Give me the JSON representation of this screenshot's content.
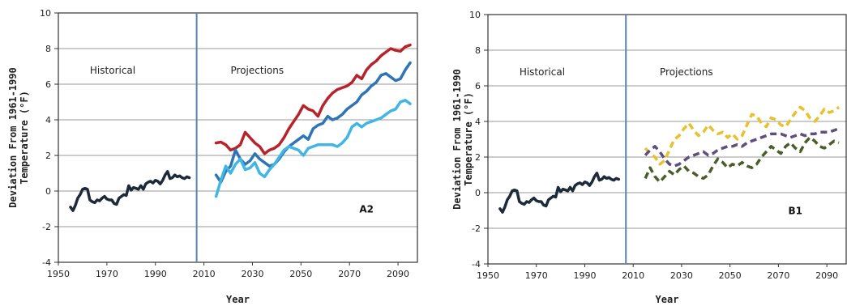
{
  "charts": [
    {
      "chart_data": {
        "type": "line",
        "panel_label": "A2",
        "xlabel": "Year",
        "ylabel_line1": "Deviation From 1961-1990",
        "ylabel_line2": "Temperature (°F)",
        "xlim": [
          1950,
          2098
        ],
        "ylim": [
          -4,
          10
        ],
        "xticks": [
          1950,
          1970,
          1990,
          2010,
          2030,
          2050,
          2070,
          2090
        ],
        "yticks": [
          -4,
          -2,
          0,
          2,
          4,
          6,
          8,
          10
        ],
        "grid": true,
        "divider_year": 2007,
        "annotations": {
          "historical": "Historical",
          "projections": "Projections"
        },
        "series": [
          {
            "key": "historical",
            "color": "#1d2a3a",
            "dashed": false,
            "x": [
              1955,
              1956,
              1957,
              1958,
              1959,
              1960,
              1961,
              1962,
              1963,
              1964,
              1965,
              1966,
              1967,
              1968,
              1969,
              1970,
              1971,
              1972,
              1973,
              1974,
              1975,
              1976,
              1977,
              1978,
              1979,
              1980,
              1981,
              1982,
              1983,
              1984,
              1985,
              1986,
              1987,
              1988,
              1989,
              1990,
              1991,
              1992,
              1993,
              1994,
              1995,
              1996,
              1997,
              1998,
              1999,
              2000,
              2001,
              2002,
              2003,
              2004
            ],
            "y": [
              -0.9,
              -1.1,
              -0.8,
              -0.4,
              -0.2,
              0.1,
              0.15,
              0.1,
              -0.5,
              -0.6,
              -0.65,
              -0.5,
              -0.55,
              -0.4,
              -0.3,
              -0.45,
              -0.5,
              -0.5,
              -0.7,
              -0.75,
              -0.4,
              -0.3,
              -0.2,
              -0.25,
              0.3,
              0.05,
              0.2,
              0.15,
              0.1,
              0.3,
              0.1,
              0.4,
              0.5,
              0.55,
              0.45,
              0.6,
              0.55,
              0.4,
              0.6,
              0.9,
              1.1,
              0.7,
              0.75,
              0.9,
              0.8,
              0.85,
              0.75,
              0.7,
              0.8,
              0.75
            ]
          },
          {
            "key": "high",
            "color": "#b8222a",
            "dashed": false,
            "x": [
              2015,
              2017,
              2019,
              2021,
              2023,
              2025,
              2027,
              2029,
              2031,
              2033,
              2035,
              2037,
              2039,
              2041,
              2043,
              2045,
              2047,
              2049,
              2051,
              2053,
              2055,
              2057,
              2059,
              2061,
              2063,
              2065,
              2067,
              2069,
              2071,
              2073,
              2075,
              2077,
              2079,
              2081,
              2083,
              2085,
              2087,
              2089,
              2091,
              2093,
              2095
            ],
            "y": [
              2.7,
              2.75,
              2.6,
              2.3,
              2.4,
              2.6,
              3.3,
              3.0,
              2.7,
              2.5,
              2.1,
              2.3,
              2.4,
              2.6,
              3.0,
              3.5,
              3.9,
              4.3,
              4.8,
              4.6,
              4.5,
              4.2,
              4.8,
              5.2,
              5.5,
              5.7,
              5.8,
              5.9,
              6.1,
              6.5,
              6.3,
              6.8,
              7.1,
              7.3,
              7.6,
              7.8,
              8.0,
              7.9,
              7.85,
              8.1,
              8.2
            ]
          },
          {
            "key": "mid",
            "color": "#2f75b5",
            "dashed": false,
            "x": [
              2015,
              2017,
              2019,
              2021,
              2023,
              2025,
              2027,
              2029,
              2031,
              2033,
              2035,
              2037,
              2039,
              2041,
              2043,
              2045,
              2047,
              2049,
              2051,
              2053,
              2055,
              2057,
              2059,
              2061,
              2063,
              2065,
              2067,
              2069,
              2071,
              2073,
              2075,
              2077,
              2079,
              2081,
              2083,
              2085,
              2087,
              2089,
              2091,
              2093,
              2095
            ],
            "y": [
              0.9,
              0.5,
              1.1,
              1.4,
              2.3,
              1.8,
              1.5,
              1.7,
              2.1,
              1.8,
              1.6,
              1.4,
              1.5,
              1.8,
              2.2,
              2.5,
              2.7,
              2.9,
              3.1,
              2.9,
              3.5,
              3.7,
              3.8,
              4.2,
              4.0,
              4.1,
              4.3,
              4.6,
              4.8,
              5.0,
              5.4,
              5.6,
              5.9,
              6.1,
              6.5,
              6.6,
              6.4,
              6.2,
              6.3,
              6.8,
              7.2
            ]
          },
          {
            "key": "low",
            "color": "#3fb6e3",
            "dashed": false,
            "x": [
              2015,
              2017,
              2019,
              2021,
              2023,
              2025,
              2027,
              2029,
              2031,
              2033,
              2035,
              2037,
              2039,
              2041,
              2043,
              2045,
              2047,
              2049,
              2051,
              2053,
              2055,
              2057,
              2059,
              2061,
              2063,
              2065,
              2067,
              2069,
              2071,
              2073,
              2075,
              2077,
              2079,
              2081,
              2083,
              2085,
              2087,
              2089,
              2091,
              2093,
              2095
            ],
            "y": [
              -0.3,
              0.6,
              1.4,
              1.0,
              1.5,
              1.8,
              1.2,
              1.3,
              1.6,
              1.0,
              0.8,
              1.2,
              1.5,
              1.9,
              2.3,
              2.5,
              2.4,
              2.3,
              2.0,
              2.4,
              2.5,
              2.6,
              2.6,
              2.6,
              2.6,
              2.5,
              2.7,
              3.0,
              3.6,
              3.8,
              3.6,
              3.8,
              3.9,
              4.0,
              4.1,
              4.3,
              4.5,
              4.6,
              5.0,
              5.1,
              4.9
            ]
          }
        ]
      }
    },
    {
      "chart_data": {
        "type": "line",
        "panel_label": "B1",
        "xlabel": "Year",
        "ylabel_line1": "Deviation From 1961-1990",
        "ylabel_line2": "Temperature (°F)",
        "xlim": [
          1950,
          2098
        ],
        "ylim": [
          -4,
          10
        ],
        "xticks": [
          1950,
          1970,
          1990,
          2010,
          2030,
          2050,
          2070,
          2090
        ],
        "yticks": [
          -4,
          -2,
          0,
          2,
          4,
          6,
          8,
          10
        ],
        "grid": true,
        "divider_year": 2007,
        "annotations": {
          "historical": "Historical",
          "projections": "Projections"
        },
        "series": [
          {
            "key": "historical",
            "color": "#1d2a3a",
            "dashed": false,
            "x": [
              1955,
              1956,
              1957,
              1958,
              1959,
              1960,
              1961,
              1962,
              1963,
              1964,
              1965,
              1966,
              1967,
              1968,
              1969,
              1970,
              1971,
              1972,
              1973,
              1974,
              1975,
              1976,
              1977,
              1978,
              1979,
              1980,
              1981,
              1982,
              1983,
              1984,
              1985,
              1986,
              1987,
              1988,
              1989,
              1990,
              1991,
              1992,
              1993,
              1994,
              1995,
              1996,
              1997,
              1998,
              1999,
              2000,
              2001,
              2002,
              2003,
              2004
            ],
            "y": [
              -0.9,
              -1.1,
              -0.8,
              -0.4,
              -0.2,
              0.1,
              0.15,
              0.1,
              -0.5,
              -0.6,
              -0.65,
              -0.5,
              -0.55,
              -0.4,
              -0.3,
              -0.45,
              -0.5,
              -0.5,
              -0.7,
              -0.75,
              -0.4,
              -0.3,
              -0.2,
              -0.25,
              0.3,
              0.05,
              0.2,
              0.15,
              0.1,
              0.3,
              0.1,
              0.4,
              0.5,
              0.55,
              0.45,
              0.6,
              0.55,
              0.4,
              0.6,
              0.9,
              1.1,
              0.7,
              0.75,
              0.9,
              0.8,
              0.85,
              0.75,
              0.7,
              0.8,
              0.75
            ]
          },
          {
            "key": "high",
            "color": "#e8c12c",
            "dashed": true,
            "x": [
              2015,
              2017,
              2019,
              2021,
              2023,
              2025,
              2027,
              2029,
              2031,
              2033,
              2035,
              2037,
              2039,
              2041,
              2043,
              2045,
              2047,
              2049,
              2051,
              2053,
              2055,
              2057,
              2059,
              2061,
              2063,
              2065,
              2067,
              2069,
              2071,
              2073,
              2075,
              2077,
              2079,
              2081,
              2083,
              2085,
              2087,
              2089,
              2091,
              2093,
              2095
            ],
            "y": [
              2.5,
              2.2,
              2.0,
              1.6,
              1.8,
              2.4,
              3.0,
              3.2,
              3.6,
              3.9,
              3.5,
              3.2,
              3.4,
              3.8,
              3.5,
              3.3,
              3.4,
              3.1,
              3.3,
              3.0,
              3.2,
              3.8,
              4.4,
              4.3,
              3.9,
              3.7,
              4.2,
              4.1,
              3.8,
              3.7,
              4.1,
              4.5,
              4.8,
              4.6,
              4.2,
              4.0,
              4.3,
              4.7,
              4.5,
              4.6,
              4.8
            ]
          },
          {
            "key": "mid",
            "color": "#5e4f7e",
            "dashed": true,
            "x": [
              2015,
              2017,
              2019,
              2021,
              2023,
              2025,
              2027,
              2029,
              2031,
              2033,
              2035,
              2037,
              2039,
              2041,
              2043,
              2045,
              2047,
              2049,
              2051,
              2053,
              2055,
              2057,
              2059,
              2061,
              2063,
              2065,
              2067,
              2069,
              2071,
              2073,
              2075,
              2077,
              2079,
              2081,
              2083,
              2085,
              2087,
              2089,
              2091,
              2093,
              2095
            ],
            "y": [
              2.1,
              2.4,
              2.6,
              2.3,
              1.9,
              1.6,
              1.5,
              1.6,
              1.8,
              2.0,
              2.1,
              2.2,
              2.3,
              2.1,
              2.2,
              2.4,
              2.5,
              2.6,
              2.6,
              2.7,
              2.6,
              2.8,
              2.9,
              3.0,
              3.1,
              3.2,
              3.3,
              3.3,
              3.3,
              3.2,
              3.1,
              3.2,
              3.3,
              3.2,
              3.3,
              3.3,
              3.4,
              3.4,
              3.4,
              3.5,
              3.6
            ]
          },
          {
            "key": "low",
            "color": "#4a5e2a",
            "dashed": true,
            "x": [
              2015,
              2017,
              2019,
              2021,
              2023,
              2025,
              2027,
              2029,
              2031,
              2033,
              2035,
              2037,
              2039,
              2041,
              2043,
              2045,
              2047,
              2049,
              2051,
              2053,
              2055,
              2057,
              2059,
              2061,
              2063,
              2065,
              2067,
              2069,
              2071,
              2073,
              2075,
              2077,
              2079,
              2081,
              2083,
              2085,
              2087,
              2089,
              2091,
              2093,
              2095
            ],
            "y": [
              0.8,
              1.4,
              0.9,
              0.6,
              0.9,
              1.2,
              1.0,
              1.3,
              1.5,
              1.2,
              1.1,
              0.9,
              0.8,
              1.0,
              1.5,
              1.9,
              1.7,
              1.4,
              1.6,
              1.5,
              1.7,
              1.5,
              1.4,
              1.6,
              2.0,
              2.3,
              2.6,
              2.4,
              2.2,
              2.6,
              2.8,
              2.5,
              2.3,
              2.8,
              3.1,
              2.9,
              2.6,
              2.5,
              2.7,
              2.9,
              2.8
            ]
          }
        ]
      }
    }
  ]
}
